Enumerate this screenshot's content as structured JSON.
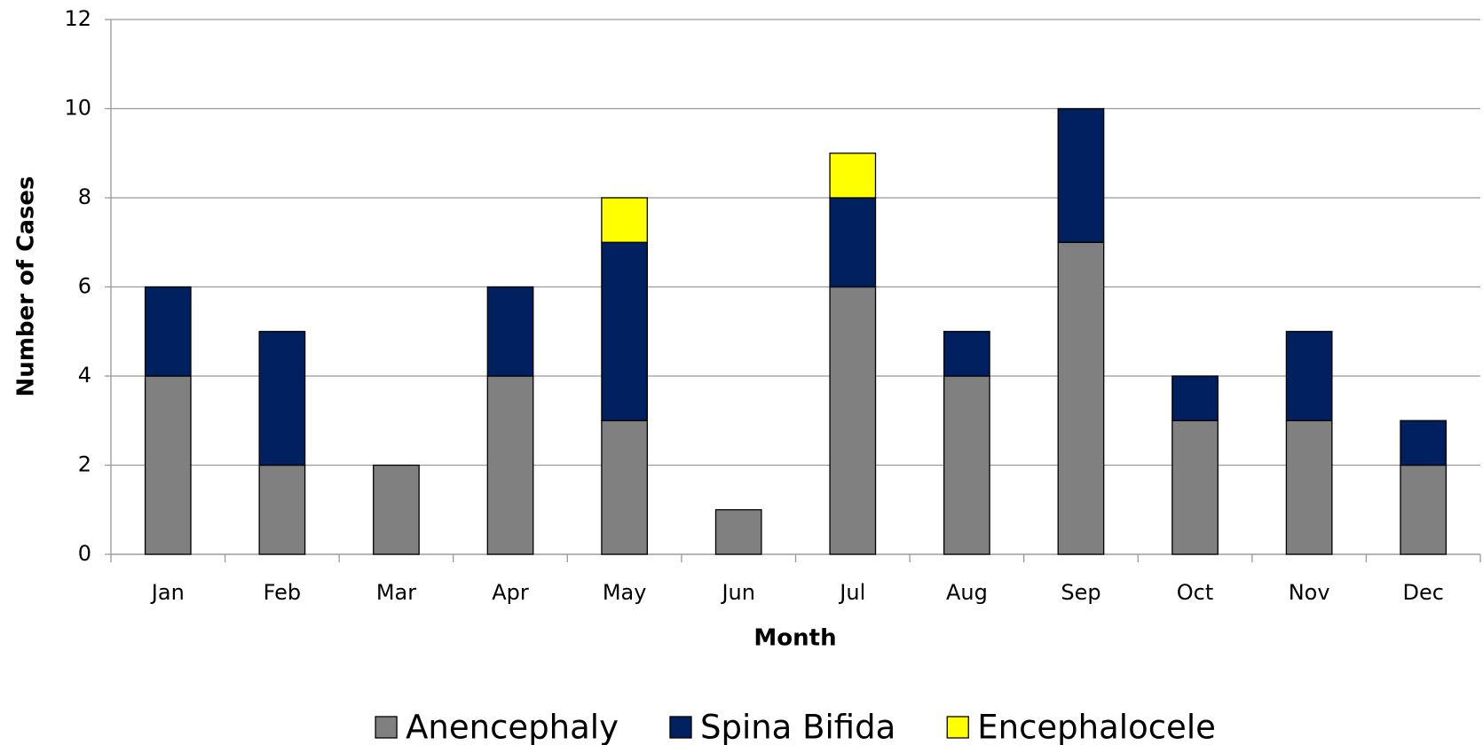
{
  "chart_data": {
    "type": "stacked_bar",
    "x_label": "Month",
    "y_label": "Number of Cases",
    "categories": [
      "Jan",
      "Feb",
      "Mar",
      "Apr",
      "May",
      "Jun",
      "Jul",
      "Aug",
      "Sep",
      "Oct",
      "Nov",
      "Dec"
    ],
    "series": [
      {
        "name": "Anencephaly",
        "color": "#808080",
        "values": [
          4,
          2,
          2,
          4,
          3,
          1,
          6,
          4,
          7,
          3,
          3,
          2
        ]
      },
      {
        "name": "Spina Bifida",
        "color": "#002060",
        "values": [
          2,
          3,
          0,
          2,
          4,
          0,
          2,
          1,
          3,
          1,
          2,
          1
        ]
      },
      {
        "name": "Encephalocele",
        "color": "#ffff00",
        "values": [
          0,
          0,
          0,
          0,
          1,
          0,
          1,
          0,
          0,
          0,
          0,
          0
        ]
      }
    ],
    "ylim": [
      0,
      12
    ],
    "yticks": [
      0,
      2,
      4,
      6,
      8,
      10,
      12
    ],
    "grid": true,
    "legend": "bottom"
  }
}
